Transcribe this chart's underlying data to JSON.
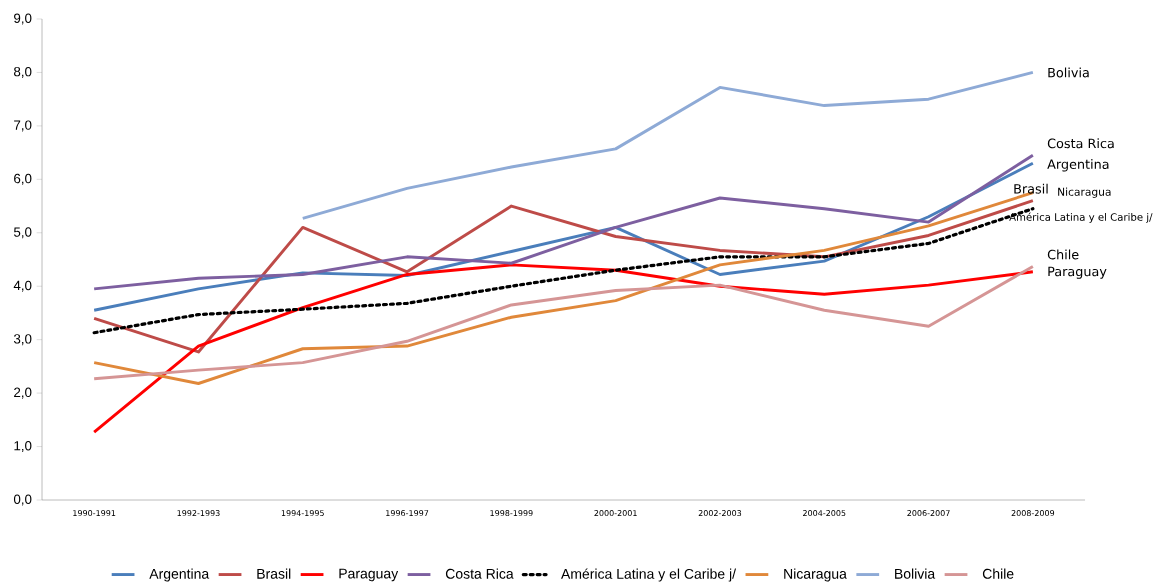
{
  "chart_data": {
    "type": "line",
    "categories": [
      "1990-1991",
      "1992-1993",
      "1994-1995",
      "1996-1997",
      "1998-1999",
      "2000-2001",
      "2002-2003",
      "2004-2005",
      "2006-2007",
      "2008-2009"
    ],
    "series": [
      {
        "name": "Argentina",
        "color": "#4a7ebb",
        "values": [
          3.55,
          3.95,
          4.25,
          4.2,
          4.65,
          5.1,
          4.22,
          4.47,
          5.3,
          6.3
        ]
      },
      {
        "name": "Brasil",
        "color": "#be4b48",
        "values": [
          3.4,
          2.77,
          5.1,
          4.27,
          5.5,
          4.93,
          4.67,
          4.55,
          4.95,
          5.6
        ]
      },
      {
        "name": "Paraguay",
        "color": "#ff0000",
        "values": [
          1.27,
          2.88,
          3.6,
          4.22,
          4.4,
          4.3,
          4.0,
          3.85,
          4.02,
          4.27
        ]
      },
      {
        "name": "Costa Rica",
        "color": "#7d5fa0",
        "values": [
          3.95,
          4.15,
          4.22,
          4.55,
          4.43,
          5.1,
          5.65,
          5.45,
          5.2,
          6.45
        ]
      },
      {
        "name": "América Latina y el Caribe j/",
        "color": "#000000",
        "line_style": "dotted",
        "values": [
          3.13,
          3.47,
          3.57,
          3.68,
          4.0,
          4.3,
          4.55,
          4.55,
          4.8,
          5.45
        ]
      },
      {
        "name": "Nicaragua",
        "color": "#e0883a",
        "values": [
          2.57,
          2.18,
          2.83,
          2.88,
          3.42,
          3.73,
          4.4,
          4.67,
          5.13,
          5.75
        ]
      },
      {
        "name": "Bolivia",
        "color": "#8eaad6",
        "values": [
          null,
          null,
          5.27,
          5.83,
          6.23,
          6.57,
          7.72,
          7.38,
          7.5,
          8.0
        ]
      },
      {
        "name": "Chile",
        "color": "#d59595",
        "values": [
          2.27,
          2.43,
          2.57,
          2.97,
          3.65,
          3.92,
          4.02,
          3.55,
          3.25,
          4.37
        ]
      }
    ],
    "annotations": [
      {
        "text": "Bolivia",
        "x": "2008-2009",
        "y": 8.0
      },
      {
        "text": "Costa Rica",
        "x": "2008-2009",
        "y": 6.45
      },
      {
        "text": "Argentina",
        "x": "2008-2009",
        "y": 6.3
      },
      {
        "text": "Brasil",
        "x": "2008-2009",
        "y": 5.6
      },
      {
        "text": "Nicaragua",
        "x": "2008-2009",
        "y": 5.75
      },
      {
        "text": "América Latina y el Caribe j/",
        "x": "2008-2009",
        "y": 5.45
      },
      {
        "text": "Chile",
        "x": "2008-2009",
        "y": 4.37
      },
      {
        "text": "Paraguay",
        "x": "2008-2009",
        "y": 4.27
      }
    ],
    "ylim": [
      0,
      9
    ],
    "yticks": [
      {
        "value": 0,
        "label": "0,0"
      },
      {
        "value": 1,
        "label": "1,0"
      },
      {
        "value": 2,
        "label": "2,0"
      },
      {
        "value": 3,
        "label": "3,0"
      },
      {
        "value": 4,
        "label": "4,0"
      },
      {
        "value": 5,
        "label": "5,0"
      },
      {
        "value": 6,
        "label": "6,0"
      },
      {
        "value": 7,
        "label": "7,0"
      },
      {
        "value": 8,
        "label": "8,0"
      },
      {
        "value": 9,
        "label": "9,0"
      }
    ],
    "grid": false,
    "legend": "bottom",
    "marker": "none",
    "line_style": "solid"
  }
}
